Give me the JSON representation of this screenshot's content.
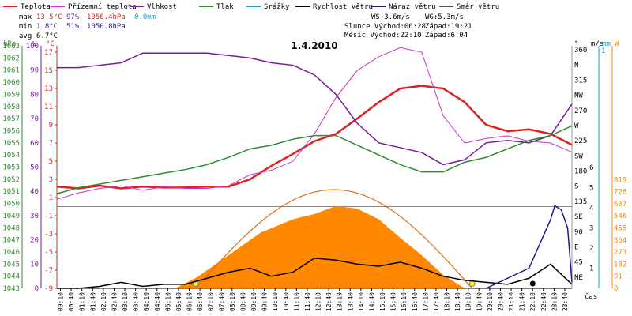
{
  "chart_data": {
    "type": "line",
    "title": "1.4.2010",
    "xlabel": "čas",
    "x_ticks": [
      "00:10",
      "00:40",
      "01:10",
      "01:40",
      "02:10",
      "02:40",
      "03:10",
      "03:40",
      "04:10",
      "04:40",
      "05:10",
      "05:40",
      "06:10",
      "06:40",
      "07:10",
      "07:40",
      "08:10",
      "08:40",
      "09:10",
      "09:40",
      "10:10",
      "10:40",
      "11:10",
      "11:40",
      "12:10",
      "12:40",
      "13:10",
      "13:40",
      "14:10",
      "14:40",
      "15:10",
      "15:40",
      "16:10",
      "16:40",
      "17:10",
      "17:40",
      "18:10",
      "18:40",
      "19:10",
      "19:40",
      "20:10",
      "20:40",
      "21:10",
      "21:40",
      "22:10",
      "22:40",
      "23:10",
      "23:40"
    ],
    "legend": [
      {
        "label": "Teplota",
        "color": "#e02020"
      },
      {
        "label": "Přízemní teplota",
        "color": "#cc33cc"
      },
      {
        "label": "Vlhkost",
        "color": "#7a1aa0"
      },
      {
        "label": "Tlak",
        "color": "#2e8b2e"
      },
      {
        "label": "Srážky",
        "color": "#1aa0c8"
      },
      {
        "label": "Rychlost větru",
        "color": "#000000"
      },
      {
        "label": "Náraz větru",
        "color": "#1a1a90"
      },
      {
        "label": "Směr větru",
        "color": "#555555"
      }
    ],
    "stats": {
      "max_label": "max",
      "min_label": "min",
      "avg_label": "avg",
      "max": {
        "temp": "13.5°C",
        "hum": "97%",
        "press": "1056.4hPa",
        "rain": "0.0mm"
      },
      "min": {
        "temp": "1.8°C",
        "hum": "51%",
        "press": "1050.8hPa"
      },
      "avg": {
        "temp": "6.7°C"
      },
      "ws": "WS:3.6m/s",
      "wg": "WG:5.3m/s",
      "sun_rise": "Slunce Východ:06:28",
      "sun_set": "Západ:19:21",
      "moon_rise": "Měsíc Východ:22:10",
      "moon_set": "Západ:6:04"
    },
    "axes": {
      "hpa": {
        "label": "hPa",
        "ticks": [
          "1063",
          "1062",
          "1061",
          "1060",
          "1059",
          "1058",
          "1057",
          "1056",
          "1055",
          "1054",
          "1053",
          "1052",
          "1051",
          "1050",
          "1049",
          "1048",
          "1047",
          "1046",
          "1045",
          "1044",
          "1043"
        ],
        "range": [
          1043,
          1063
        ]
      },
      "percent": {
        "label": "%",
        "ticks": [
          "100",
          "90",
          "80",
          "70",
          "60",
          "50",
          "40",
          "30",
          "20",
          "10",
          "0"
        ],
        "range": [
          0,
          100
        ]
      },
      "celsius": {
        "label": "°C",
        "ticks": [
          "17",
          "15",
          "13",
          "11",
          "9",
          "7",
          "5",
          "3",
          "1",
          "-1",
          "-3",
          "-5",
          "-7",
          "-9"
        ],
        "range": [
          -9,
          17.7
        ]
      },
      "direction": {
        "label": "°",
        "ticks": [
          "360",
          "N",
          "315",
          "NW",
          "270",
          "W",
          "225",
          "SW",
          "180",
          "S",
          "135",
          "SE",
          "90",
          "E",
          "45",
          "NE"
        ]
      },
      "wind": {
        "label": "m/s",
        "ticks": [
          "6",
          "5",
          "4",
          "3",
          "2",
          "1"
        ],
        "range": [
          0,
          6
        ]
      },
      "rain": {
        "label": "mm",
        "ticks": [
          "1"
        ]
      },
      "solar": {
        "label": "W",
        "ticks": [
          "819",
          "728",
          "637",
          "546",
          "455",
          "364",
          "273",
          "182",
          "91",
          "0"
        ],
        "range": [
          0,
          910
        ]
      }
    },
    "series": [
      {
        "name": "Teplota",
        "unit": "°C",
        "x": [
          0,
          1,
          2,
          3,
          4,
          5,
          6,
          7,
          8,
          9,
          10,
          11,
          12,
          13,
          14,
          15,
          16,
          17,
          18,
          19,
          20,
          21,
          22,
          23,
          24
        ],
        "values": [
          2.2,
          2.0,
          2.3,
          2.0,
          2.2,
          2.1,
          2.1,
          2.2,
          2.2,
          3.0,
          4.5,
          5.8,
          7.2,
          8.0,
          9.7,
          11.5,
          13.0,
          13.3,
          13.0,
          11.5,
          9.0,
          8.3,
          8.5,
          8.0,
          6.8
        ]
      },
      {
        "name": "Přízemní teplota",
        "unit": "°C",
        "x": [
          0,
          1,
          2,
          3,
          4,
          5,
          6,
          7,
          8,
          9,
          10,
          11,
          12,
          13,
          14,
          15,
          16,
          17,
          18,
          19,
          20,
          21,
          22,
          23,
          24
        ],
        "values": [
          0.8,
          1.5,
          2.0,
          2.3,
          1.8,
          2.2,
          2.0,
          2.0,
          2.3,
          3.5,
          4.0,
          5.0,
          8.0,
          12.0,
          15.0,
          16.5,
          17.5,
          17.0,
          10.0,
          7.0,
          7.5,
          7.8,
          7.2,
          7.0,
          6.0
        ]
      },
      {
        "name": "Vlhkost",
        "unit": "%",
        "x": [
          0,
          1,
          2,
          3,
          4,
          5,
          6,
          7,
          8,
          9,
          10,
          11,
          12,
          13,
          14,
          15,
          16,
          17,
          18,
          19,
          20,
          21,
          22,
          23,
          24
        ],
        "values": [
          91,
          91,
          92,
          93,
          97,
          97,
          97,
          97,
          96,
          95,
          93,
          92,
          88,
          80,
          68,
          60,
          58,
          56,
          51,
          53,
          60,
          61,
          60,
          63,
          76
        ]
      },
      {
        "name": "Tlak",
        "unit": "hPa",
        "x": [
          0,
          1,
          2,
          3,
          4,
          5,
          6,
          7,
          8,
          9,
          10,
          11,
          12,
          13,
          14,
          15,
          16,
          17,
          18,
          19,
          20,
          21,
          22,
          23,
          24
        ],
        "values": [
          1050.8,
          1051.3,
          1051.6,
          1051.9,
          1052.2,
          1052.5,
          1052.8,
          1053.2,
          1053.8,
          1054.5,
          1054.8,
          1055.3,
          1055.6,
          1055.6,
          1054.8,
          1054.0,
          1053.2,
          1052.6,
          1052.6,
          1053.4,
          1053.8,
          1054.5,
          1055.2,
          1055.6,
          1056.4
        ]
      },
      {
        "name": "Rychlost větru",
        "unit": "m/s",
        "x": [
          0,
          1,
          2,
          3,
          4,
          5,
          6,
          7,
          8,
          9,
          10,
          11,
          12,
          13,
          14,
          15,
          16,
          17,
          18,
          19,
          20,
          21,
          22,
          23,
          24
        ],
        "values": [
          0.0,
          0.0,
          0.1,
          0.3,
          0.1,
          0.2,
          0.2,
          0.5,
          0.8,
          1.0,
          0.6,
          0.8,
          1.5,
          1.4,
          1.2,
          1.1,
          1.3,
          1.0,
          0.6,
          0.4,
          0.3,
          0.2,
          0.5,
          1.2,
          0.2
        ]
      },
      {
        "name": "Náraz větru",
        "unit": "m/s",
        "x": [
          20,
          21,
          22,
          23,
          23.2,
          23.5,
          23.8,
          24
        ],
        "values": [
          0.0,
          0.5,
          1.0,
          3.4,
          4.1,
          3.9,
          3.0,
          0.3
        ]
      },
      {
        "name": "Solar",
        "unit": "W",
        "x": [
          5.5,
          6.5,
          8,
          9.5,
          11,
          12,
          13,
          14,
          15,
          16,
          17,
          18,
          19
        ],
        "values": [
          0,
          80,
          250,
          420,
          520,
          560,
          620,
          600,
          520,
          380,
          250,
          100,
          0
        ]
      }
    ],
    "annotations": {
      "sun_rise_h": 6.47,
      "sun_set_h": 19.35,
      "moon_rise_h": 22.17
    }
  }
}
